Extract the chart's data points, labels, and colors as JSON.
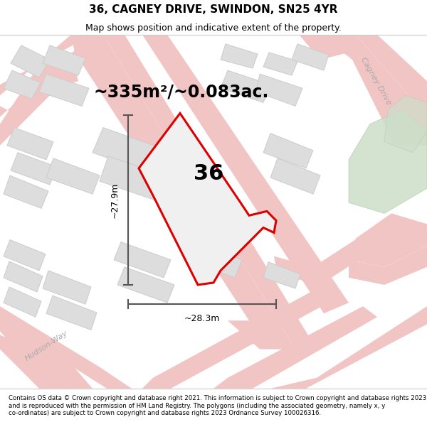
{
  "title": "36, CAGNEY DRIVE, SWINDON, SN25 4YR",
  "subtitle": "Map shows position and indicative extent of the property.",
  "area_label": "~335m²/~0.083ac.",
  "property_number": "36",
  "dim_width": "~28.3m",
  "dim_height": "~27.9m",
  "footer": "Contains OS data © Crown copyright and database right 2021. This information is subject to Crown copyright and database rights 2023 and is reproduced with the permission of HM Land Registry. The polygons (including the associated geometry, namely x, y co-ordinates) are subject to Crown copyright and database rights 2023 Ordnance Survey 100026316.",
  "bg_color": "#ffffff",
  "map_bg": "#f5f3f2",
  "road_color": "#f2c5c5",
  "road_outline": "#e8a8a8",
  "building_fill": "#dddddd",
  "building_edge": "#cccccc",
  "green_fill": "#cddfc8",
  "green_edge": "#b8cdb5",
  "property_fill": "#ececec",
  "property_edge": "#dd0000",
  "dim_color": "#555555",
  "road_label_color": "#aaaaaa",
  "title_fontsize": 11,
  "subtitle_fontsize": 9,
  "area_fontsize": 17,
  "number_fontsize": 22,
  "dim_fontsize": 9,
  "road_label_fontsize": 8,
  "footer_fontsize": 6.2
}
